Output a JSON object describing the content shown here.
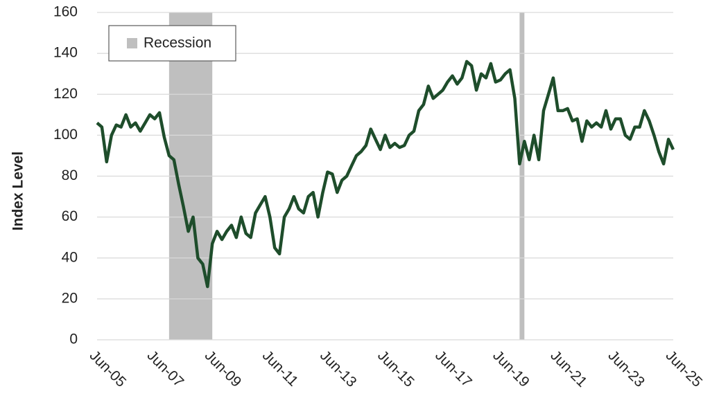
{
  "chart_data": {
    "type": "line",
    "y_label": "Index Level",
    "x": [
      "Jun-05",
      "Aug-05",
      "Oct-05",
      "Dec-05",
      "Feb-06",
      "Apr-06",
      "Jun-06",
      "Aug-06",
      "Oct-06",
      "Dec-06",
      "Feb-07",
      "Apr-07",
      "Jun-07",
      "Aug-07",
      "Oct-07",
      "Dec-07",
      "Feb-08",
      "Apr-08",
      "Jun-08",
      "Aug-08",
      "Oct-08",
      "Dec-08",
      "Feb-09",
      "Apr-09",
      "Jun-09",
      "Aug-09",
      "Oct-09",
      "Dec-09",
      "Feb-10",
      "Apr-10",
      "Jun-10",
      "Aug-10",
      "Oct-10",
      "Dec-10",
      "Feb-11",
      "Apr-11",
      "Jun-11",
      "Aug-11",
      "Oct-11",
      "Dec-11",
      "Feb-12",
      "Apr-12",
      "Jun-12",
      "Aug-12",
      "Oct-12",
      "Dec-12",
      "Feb-13",
      "Apr-13",
      "Jun-13",
      "Aug-13",
      "Oct-13",
      "Dec-13",
      "Feb-14",
      "Apr-14",
      "Jun-14",
      "Aug-14",
      "Oct-14",
      "Dec-14",
      "Feb-15",
      "Apr-15",
      "Jun-15",
      "Aug-15",
      "Oct-15",
      "Dec-15",
      "Feb-16",
      "Apr-16",
      "Jun-16",
      "Aug-16",
      "Oct-16",
      "Dec-16",
      "Feb-17",
      "Apr-17",
      "Jun-17",
      "Aug-17",
      "Oct-17",
      "Dec-17",
      "Feb-18",
      "Apr-18",
      "Jun-18",
      "Aug-18",
      "Oct-18",
      "Dec-18",
      "Feb-19",
      "Apr-19",
      "Jun-19",
      "Aug-19",
      "Oct-19",
      "Dec-19",
      "Feb-20",
      "Apr-20",
      "Jun-20",
      "Aug-20",
      "Oct-20",
      "Dec-20",
      "Feb-21",
      "Apr-21",
      "Jun-21",
      "Aug-21",
      "Oct-21",
      "Dec-21",
      "Feb-22",
      "Apr-22",
      "Jun-22",
      "Aug-22",
      "Oct-22",
      "Dec-22",
      "Feb-23",
      "Apr-23",
      "Jun-23",
      "Aug-23",
      "Oct-23",
      "Dec-23",
      "Feb-24",
      "Apr-24",
      "Jun-24",
      "Aug-24",
      "Oct-24",
      "Dec-24",
      "Feb-25",
      "Apr-25",
      "Jun-25"
    ],
    "series": [
      {
        "color": "#1e4d2b",
        "values": [
          106,
          104,
          87,
          100,
          105,
          104,
          110,
          104,
          106,
          102,
          106,
          110,
          108,
          111,
          99,
          90,
          88,
          76,
          65,
          53,
          60,
          40,
          37,
          26,
          47,
          53,
          49,
          53,
          56,
          50,
          60,
          52,
          50,
          62,
          66,
          70,
          60,
          45,
          42,
          60,
          64,
          70,
          64,
          62,
          70,
          72,
          60,
          72,
          82,
          81,
          72,
          78,
          80,
          85,
          90,
          92,
          95,
          103,
          98,
          93,
          100,
          94,
          96,
          94,
          95,
          100,
          102,
          112,
          115,
          124,
          118,
          120,
          122,
          126,
          129,
          125,
          128,
          136,
          134,
          122,
          130,
          128,
          135,
          126,
          127,
          130,
          132,
          118,
          86,
          97,
          88,
          100,
          88,
          112,
          120,
          128,
          112,
          112,
          113,
          107,
          108,
          97,
          107,
          104,
          106,
          104,
          112,
          103,
          108,
          108,
          100,
          98,
          104,
          104,
          112,
          107,
          100,
          92,
          86,
          98,
          93
        ]
      }
    ],
    "xticks": [
      "Jun-05",
      "Jun-07",
      "Jun-09",
      "Jun-11",
      "Jun-13",
      "Jun-15",
      "Jun-17",
      "Jun-19",
      "Jun-21",
      "Jun-23",
      "Jun-25"
    ],
    "ylim": [
      0,
      160
    ],
    "yticks": [
      0,
      20,
      40,
      60,
      80,
      100,
      120,
      140,
      160
    ],
    "grid": true,
    "recessions": {
      "name": "Recession",
      "color": "#bfbfbf",
      "periods": [
        [
          "Dec-07",
          "Jun-09"
        ],
        [
          "Feb-20",
          "Apr-20"
        ]
      ]
    },
    "legend": "upper-left"
  }
}
